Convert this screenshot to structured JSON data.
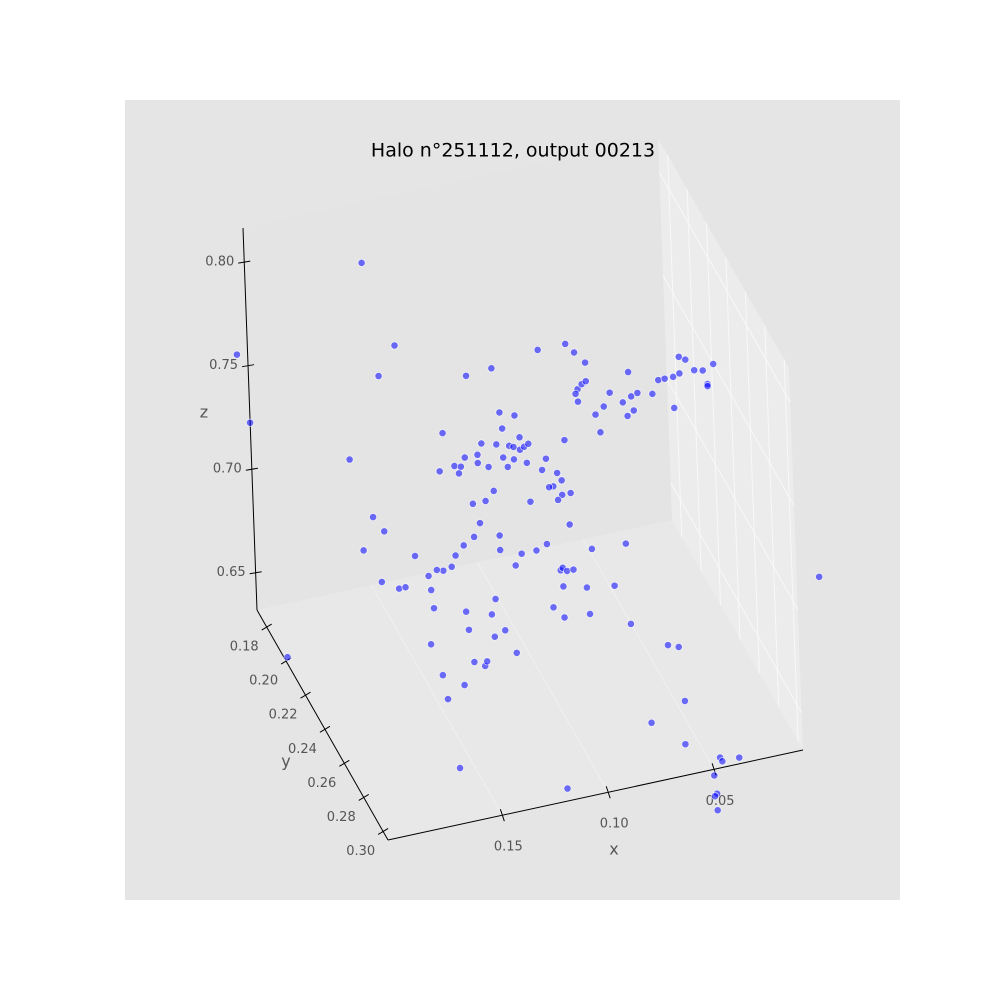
{
  "chart_data": {
    "type": "scatter3d",
    "title": "Halo n°251112, output 00213",
    "x_label": "x",
    "y_label": "y",
    "z_label": "z",
    "color": "#0000ff",
    "grid": true,
    "xlim": [
      0.008,
      0.204
    ],
    "ylim": [
      0.17,
      0.305
    ],
    "zlim": [
      0.632,
      0.8165
    ],
    "xticks": [
      {
        "value": 0.05,
        "label": "0.05"
      },
      {
        "value": 0.1,
        "label": "0.10"
      },
      0.15
    ],
    "yticks": [
      0.18,
      {
        "value": 0.2,
        "label": "0.20"
      },
      0.22,
      0.24,
      0.26,
      0.28,
      {
        "value": 0.3,
        "label": "0.30"
      }
    ],
    "zticks": [
      0.65,
      {
        "value": 0.7,
        "label": "0.70"
      },
      0.75,
      {
        "value": 0.8,
        "label": "0.80"
      }
    ],
    "x": [
      0.172,
      0.232,
      0.227,
      0.158,
      0.166,
      0.181,
      0.171,
      0.176,
      0.166,
      0.152,
      0.168,
      0.16,
      0.157,
      0.146,
      0.144,
      0.146,
      0.141,
      0.139,
      0.169,
      0.119,
      0.131,
      0.126,
      0.121,
      0.12,
      0.116,
      0.111,
      0.117,
      0.115,
      0.129,
      0.128,
      0.106,
      0.129,
      0.133,
      0.139,
      0.124,
      0.121,
      0.118,
      0.124,
      0.114,
      0.112,
      0.112,
      0.139,
      0.132,
      0.129,
      0.127,
      0.121,
      0.121,
      0.116,
      0.119,
      0.137,
      0.112,
      0.109,
      0.11,
      0.103,
      0.106,
      0.104,
      0.101,
      0.099,
      0.104,
      0.109,
      0.098,
      0.08,
      0.091,
      0.078,
      0.074,
      0.069,
      0.113,
      0.125,
      0.073,
      0.071,
      0.069,
      0.073,
      0.074,
      0.084,
      0.086,
      0.082,
      0.088,
      0.082,
      0.078,
      0.084,
      0.079,
      0.095,
      0.102,
      0.09,
      0.105,
      0.084,
      0.083,
      0.081,
      0.078,
      0.083,
      0.072,
      0.088,
      0.083,
      0.071,
      0.069,
      0.059,
      0.053,
      0.052,
      0.065,
      0.061,
      0.063,
      0.058,
      0.049,
      0.052,
      0.048,
      0.045,
      0.05,
      0.047,
      0.038,
      0.035,
      0.032,
      0.028,
      0.025,
      0.025,
      0.022,
      0.018,
      0.014,
      0.009,
      0.012,
      0.012,
      0.028,
      -0.037,
      0.067,
      0.035,
      0.03,
      0.051,
      0.063,
      0.047,
      0.046,
      0.038,
      0.05,
      0.049,
      0.05,
      0.049,
      0.202,
      0.145,
      0.142,
      0.135,
      0.091,
      0.097,
      0.089,
      0.107,
      0.101,
      0.097,
      0.13
    ],
    "y": [
      0.224,
      0.224,
      0.224,
      0.224,
      0.224,
      0.224,
      0.224,
      0.224,
      0.224,
      0.224,
      0.224,
      0.224,
      0.224,
      0.224,
      0.224,
      0.224,
      0.224,
      0.224,
      0.305,
      0.305,
      0.224,
      0.224,
      0.224,
      0.224,
      0.224,
      0.224,
      0.224,
      0.224,
      0.224,
      0.224,
      0.224,
      0.224,
      0.224,
      0.224,
      0.224,
      0.224,
      0.224,
      0.224,
      0.224,
      0.224,
      0.224,
      0.224,
      0.224,
      0.224,
      0.224,
      0.224,
      0.224,
      0.224,
      0.224,
      0.224,
      0.224,
      0.224,
      0.224,
      0.224,
      0.224,
      0.224,
      0.224,
      0.224,
      0.224,
      0.224,
      0.224,
      0.224,
      0.224,
      0.224,
      0.224,
      0.224,
      0.224,
      0.224,
      0.224,
      0.224,
      0.224,
      0.224,
      0.224,
      0.224,
      0.224,
      0.224,
      0.224,
      0.224,
      0.224,
      0.224,
      0.224,
      0.224,
      0.224,
      0.224,
      0.224,
      0.224,
      0.224,
      0.224,
      0.224,
      0.224,
      0.224,
      0.224,
      0.224,
      0.224,
      0.224,
      0.224,
      0.224,
      0.224,
      0.224,
      0.224,
      0.224,
      0.224,
      0.224,
      0.224,
      0.224,
      0.224,
      0.224,
      0.224,
      0.224,
      0.224,
      0.224,
      0.224,
      0.224,
      0.224,
      0.224,
      0.224,
      0.224,
      0.224,
      0.224,
      0.224,
      0.224,
      0.224,
      0.278,
      0.224,
      0.224,
      0.278,
      0.305,
      0.305,
      0.305,
      0.305,
      0.305,
      0.305,
      0.305,
      0.305,
      0.197,
      0.224,
      0.224,
      0.224,
      0.224,
      0.224,
      0.224,
      0.224,
      0.224,
      0.224,
      0.224
    ],
    "z": [
      0.837,
      0.806,
      0.772,
      0.794,
      0.781,
      0.744,
      0.714,
      0.699,
      0.706,
      0.691,
      0.682,
      0.677,
      0.677,
      0.68,
      0.664,
      0.647,
      0.631,
      0.619,
      0.659,
      0.638,
      0.624,
      0.634,
      0.631,
      0.633,
      0.644,
      0.646,
      0.655,
      0.662,
      0.659,
      0.65,
      0.634,
      0.691,
      0.687,
      0.681,
      0.694,
      0.7,
      0.71,
      0.71,
      0.714,
      0.692,
      0.685,
      0.729,
      0.73,
      0.729,
      0.733,
      0.729,
      0.733,
      0.726,
      0.738,
      0.747,
      0.736,
      0.743,
      0.751,
      0.748,
      0.734,
      0.733,
      0.731,
      0.732,
      0.727,
      0.729,
      0.724,
      0.731,
      0.777,
      0.777,
      0.772,
      0.766,
      0.773,
      0.772,
      0.754,
      0.756,
      0.757,
      0.748,
      0.752,
      0.716,
      0.71,
      0.712,
      0.71,
      0.705,
      0.705,
      0.703,
      0.69,
      0.681,
      0.681,
      0.683,
      0.676,
      0.669,
      0.67,
      0.668,
      0.668,
      0.661,
      0.658,
      0.652,
      0.646,
      0.645,
      0.676,
      0.656,
      0.675,
      0.636,
      0.74,
      0.743,
      0.731,
      0.749,
      0.757,
      0.743,
      0.745,
      0.746,
      0.736,
      0.738,
      0.744,
      0.75,
      0.75,
      0.75,
      0.751,
      0.759,
      0.757,
      0.751,
      0.75,
      0.752,
      0.743,
      0.742,
      0.735,
      0.639,
      0.636,
      0.622,
      0.62,
      0.643,
      0.647,
      0.637,
      0.635,
      0.635,
      0.629,
      0.62,
      0.619,
      0.612,
      0.631,
      0.673,
      0.682,
      0.682,
      0.719,
      0.705,
      0.724,
      0.724,
      0.737,
      0.733,
      0.726
    ]
  }
}
